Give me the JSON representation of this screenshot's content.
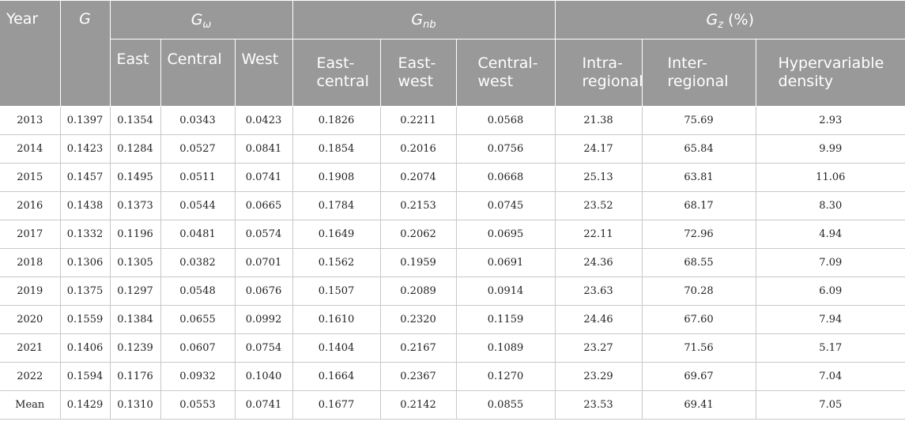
{
  "headers": {
    "year": "Year",
    "g": "G",
    "gw_base": "G",
    "gw_sub": "ω",
    "gnb_base": "G",
    "gnb_sub": "nb",
    "gz_base": "G",
    "gz_sub": "z",
    "gz_unit": "(%)",
    "east": "East",
    "central": "Central",
    "west": "West",
    "east_central": "East-central",
    "east_west": "East-west",
    "central_west": "Central-west",
    "intra_regional": "Intra-regional",
    "inter_regional": "Inter-regional",
    "hypervariable_density": "Hypervariable density"
  },
  "rows": [
    [
      "2013",
      "0.1397",
      "0.1354",
      "0.0343",
      "0.0423",
      "0.1826",
      "0.2211",
      "0.0568",
      "21.38",
      "75.69",
      "2.93"
    ],
    [
      "2014",
      "0.1423",
      "0.1284",
      "0.0527",
      "0.0841",
      "0.1854",
      "0.2016",
      "0.0756",
      "24.17",
      "65.84",
      "9.99"
    ],
    [
      "2015",
      "0.1457",
      "0.1495",
      "0.0511",
      "0.0741",
      "0.1908",
      "0.2074",
      "0.0668",
      "25.13",
      "63.81",
      "11.06"
    ],
    [
      "2016",
      "0.1438",
      "0.1373",
      "0.0544",
      "0.0665",
      "0.1784",
      "0.2153",
      "0.0745",
      "23.52",
      "68.17",
      "8.30"
    ],
    [
      "2017",
      "0.1332",
      "0.1196",
      "0.0481",
      "0.0574",
      "0.1649",
      "0.2062",
      "0.0695",
      "22.11",
      "72.96",
      "4.94"
    ],
    [
      "2018",
      "0.1306",
      "0.1305",
      "0.0382",
      "0.0701",
      "0.1562",
      "0.1959",
      "0.0691",
      "24.36",
      "68.55",
      "7.09"
    ],
    [
      "2019",
      "0.1375",
      "0.1297",
      "0.0548",
      "0.0676",
      "0.1507",
      "0.2089",
      "0.0914",
      "23.63",
      "70.28",
      "6.09"
    ],
    [
      "2020",
      "0.1559",
      "0.1384",
      "0.0655",
      "0.0992",
      "0.1610",
      "0.2320",
      "0.1159",
      "24.46",
      "67.60",
      "7.94"
    ],
    [
      "2021",
      "0.1406",
      "0.1239",
      "0.0607",
      "0.0754",
      "0.1404",
      "0.2167",
      "0.1089",
      "23.27",
      "71.56",
      "5.17"
    ],
    [
      "2022",
      "0.1594",
      "0.1176",
      "0.0932",
      "0.1040",
      "0.1664",
      "0.2367",
      "0.1270",
      "23.29",
      "69.67",
      "7.04"
    ],
    [
      "Mean",
      "0.1429",
      "0.1310",
      "0.0553",
      "0.0741",
      "0.1677",
      "0.2142",
      "0.0855",
      "23.53",
      "69.41",
      "7.05"
    ]
  ]
}
